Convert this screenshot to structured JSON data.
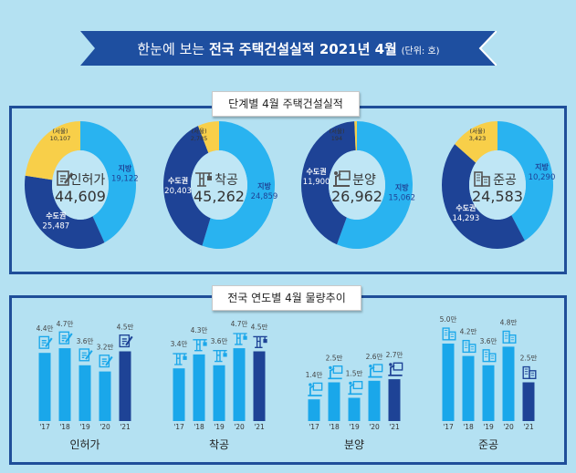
{
  "header": {
    "title_prefix": "한눈에 보는",
    "title_main": "전국 주택건설실적 2021년 4월",
    "unit": "(단위: 호)"
  },
  "colors": {
    "background": "#b4e1f2",
    "banner": "#1e4fa0",
    "region": "#29b3f0",
    "capital": "#1e4396",
    "seoul": "#f8cf49",
    "bar": "#1aa7ea",
    "bar_current": "#1e4396"
  },
  "section1": {
    "label": "단계별  4월 주택건설실적"
  },
  "section2": {
    "label": "전국 연도별 4월  물량추이"
  },
  "chart_data": [
    {
      "type": "pie",
      "title": "인허가",
      "icon": "document-pen-icon",
      "total": "44,609",
      "slices": [
        {
          "name": "지방",
          "value": 19122,
          "label": "19,122"
        },
        {
          "name": "수도권",
          "value": 25487,
          "label": "25,487"
        }
      ],
      "sub": {
        "name": "(서울)",
        "value": 10107,
        "label": "10,107"
      }
    },
    {
      "type": "pie",
      "title": "착공",
      "icon": "crane-icon",
      "total": "45,262",
      "slices": [
        {
          "name": "지방",
          "value": 24859,
          "label": "24,859"
        },
        {
          "name": "수도권",
          "value": 20403,
          "label": "20,403"
        }
      ],
      "sub": {
        "name": "(서울)",
        "value": 2785,
        "label": "2,785"
      }
    },
    {
      "type": "pie",
      "title": "분양",
      "icon": "presentation-icon",
      "total": "26,962",
      "slices": [
        {
          "name": "지방",
          "value": 15062,
          "label": "15,062"
        },
        {
          "name": "수도권",
          "value": 11900,
          "label": "11,900"
        }
      ],
      "sub": {
        "name": "(서울)",
        "value": 194,
        "label": "194"
      }
    },
    {
      "type": "pie",
      "title": "준공",
      "icon": "buildings-icon",
      "total": "24,583",
      "slices": [
        {
          "name": "지방",
          "value": 10290,
          "label": "10,290"
        },
        {
          "name": "수도권",
          "value": 14293,
          "label": "14,293"
        }
      ],
      "sub": {
        "name": "(서울)",
        "value": 3423,
        "label": "3,423"
      }
    },
    {
      "type": "bar",
      "title": "인허가",
      "icon": "document-pen-icon",
      "categories": [
        "'17",
        "'18",
        "'19",
        "'20",
        "'21"
      ],
      "values": [
        4.4,
        4.7,
        3.6,
        3.2,
        4.5
      ],
      "labels": [
        "4.4만",
        "4.7만",
        "3.6만",
        "3.2만",
        "4.5만"
      ]
    },
    {
      "type": "bar",
      "title": "착공",
      "icon": "crane-icon",
      "categories": [
        "'17",
        "'18",
        "'19",
        "'20",
        "'21"
      ],
      "values": [
        3.4,
        4.3,
        3.6,
        4.7,
        4.5
      ],
      "labels": [
        "3.4만",
        "4.3만",
        "3.6만",
        "4.7만",
        "4.5만"
      ]
    },
    {
      "type": "bar",
      "title": "분양",
      "icon": "presentation-icon",
      "categories": [
        "'17",
        "'18",
        "'19",
        "'20",
        "'21"
      ],
      "values": [
        1.4,
        2.5,
        1.5,
        2.6,
        2.7
      ],
      "labels": [
        "1.4만",
        "2.5만",
        "1.5만",
        "2.6만",
        "2.7만"
      ]
    },
    {
      "type": "bar",
      "title": "준공",
      "icon": "buildings-icon",
      "categories": [
        "'17",
        "'18",
        "'19",
        "'20",
        "'21"
      ],
      "values": [
        5.0,
        4.2,
        3.6,
        4.8,
        2.5
      ],
      "labels": [
        "5.0만",
        "4.2만",
        "3.6만",
        "4.8만",
        "2.5만"
      ]
    }
  ]
}
